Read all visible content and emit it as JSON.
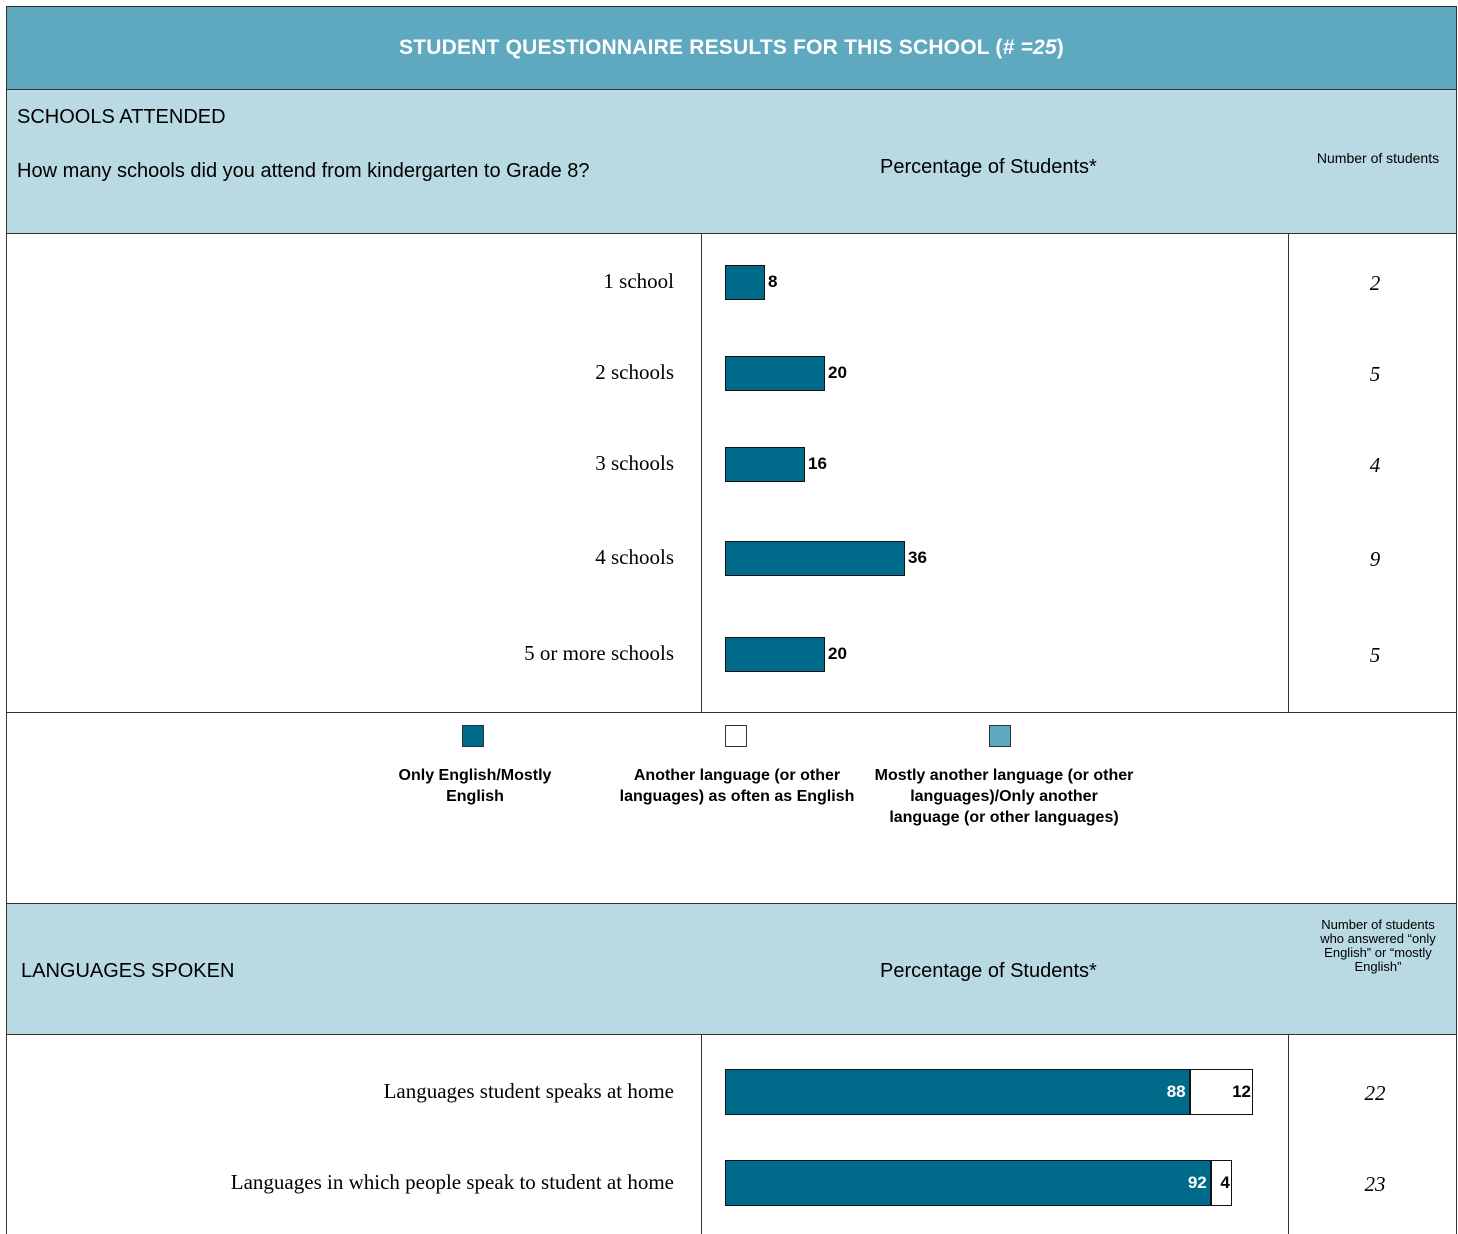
{
  "header": {
    "title_main": "STUDENT QUESTIONNAIRE RESULTS FOR THIS SCHOOL (",
    "title_hash": "# =",
    "title_count": "25",
    "title_close": ")"
  },
  "section1": {
    "title": "SCHOOLS ATTENDED",
    "question": "How many schools did you attend from kindergarten to Grade 8?",
    "percent_header": "Percentage of Students*",
    "number_header": "Number of students"
  },
  "legend": {
    "items": [
      {
        "label": "Only English/Mostly English",
        "color": "#006a8a"
      },
      {
        "label": "Another language (or other languages) as often as English",
        "color": "#ffffff"
      },
      {
        "label": "Mostly another language (or other languages)/Only another language (or other languages)",
        "color": "#5ea8c0"
      }
    ]
  },
  "section2": {
    "title": "LANGUAGES SPOKEN",
    "percent_header": "Percentage of Students*",
    "number_header": "Number of students who answered “only English” or “mostly English”"
  },
  "colors": {
    "header_bg": "#5ea8c0",
    "band_bg": "#b9d9e3",
    "bar_primary": "#006a8a"
  },
  "chart_data": [
    {
      "type": "bar",
      "orientation": "horizontal",
      "title": "SCHOOLS ATTENDED",
      "categories": [
        "1 school",
        "2 schools",
        "3 schools",
        "4 schools",
        "5 or more schools"
      ],
      "values": [
        8,
        20,
        16,
        36,
        20
      ],
      "counts": [
        "2",
        "5",
        "4",
        "9",
        "5"
      ],
      "xlim": [
        0,
        100
      ]
    },
    {
      "type": "bar",
      "orientation": "horizontal",
      "stacked": true,
      "title": "LANGUAGES SPOKEN",
      "categories": [
        "Languages student speaks at home",
        "Languages in which people speak to student at home"
      ],
      "series": [
        {
          "name": "Only English/Mostly English",
          "values": [
            88,
            92
          ]
        },
        {
          "name": "Another language (or other languages) as often as English",
          "values": [
            12,
            4
          ]
        }
      ],
      "counts": [
        "22",
        "23"
      ],
      "xlim": [
        0,
        100
      ]
    }
  ]
}
